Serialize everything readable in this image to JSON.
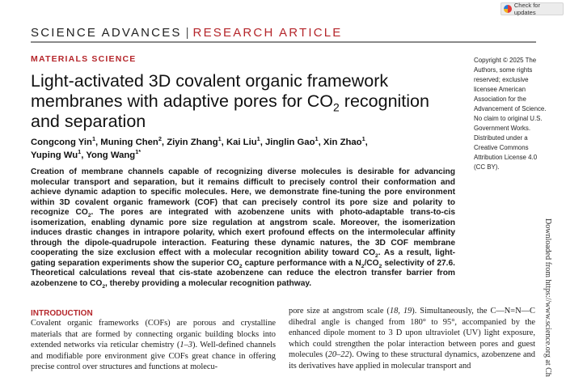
{
  "badge": {
    "label": "Check for updates",
    "icon": "crossmark-icon"
  },
  "journal": {
    "name": "SCIENCE ADVANCES",
    "separator": "|",
    "type": "RESEARCH ARTICLE"
  },
  "section": "MATERIALS SCIENCE",
  "title": [
    {
      "t": "Light-activated 3D covalent organic framework membranes with adaptive pores for CO"
    },
    {
      "t": "2",
      "sub": true
    },
    {
      "t": " recognition and separation"
    }
  ],
  "authors": [
    {
      "name": "Congcong Yin",
      "aff": "1"
    },
    {
      "name": "Muning Chen",
      "aff": "2"
    },
    {
      "name": "Ziyin Zhang",
      "aff": "1"
    },
    {
      "name": "Kai Liu",
      "aff": "1"
    },
    {
      "name": "Jinglin Gao",
      "aff": "1"
    },
    {
      "name": "Xin Zhao",
      "aff": "1"
    },
    {
      "name": "Yuping Wu",
      "aff": "1"
    },
    {
      "name": "Yong Wang",
      "aff": "1*"
    }
  ],
  "abstract": [
    {
      "t": "Creation of membrane channels capable of recognizing diverse molecules is desirable for advancing molecular transport and separation, but it remains difficult to precisely control their conformation and achieve dynamic adaption to specific molecules. Here, we demonstrate fine-tuning the pore environment within 3D covalent organic framework (COF) that can precisely control its pore size and polarity to recognize CO"
    },
    {
      "t": "2",
      "sub": true
    },
    {
      "t": ". The pores are integrated with azobenzene units with photo-adaptable trans-to-cis isomerization, enabling dynamic pore size regulation at angstrom scale. Moreover, the isomerization induces drastic changes in intrapore polarity, which exert profound effects on the intermolecular affinity through the dipole-quadrupole interaction. Featuring these dynamic natures, the 3D COF membrane cooperating the size exclusion effect with a molecular recognition ability toward CO"
    },
    {
      "t": "2",
      "sub": true
    },
    {
      "t": ". As a result, light-gating separation experiments show the superior CO"
    },
    {
      "t": "2",
      "sub": true
    },
    {
      "t": " capture performance with a N"
    },
    {
      "t": "2",
      "sub": true
    },
    {
      "t": "/CO"
    },
    {
      "t": "2",
      "sub": true
    },
    {
      "t": " selectivity of 27.6. Theoretical calculations reveal that cis-state azobenzene can reduce the electron transfer barrier from azobenzene to CO"
    },
    {
      "t": "2",
      "sub": true
    },
    {
      "t": ", thereby providing a molecular recognition pathway."
    }
  ],
  "copyright": "Copyright © 2025 The Authors, some rights reserved; exclusive licensee American Association for the Advancement of Science. No claim to original U.S. Government Works. Distributed under a Creative Commons Attribution License 4.0 (CC BY).",
  "intro": {
    "heading": "INTRODUCTION",
    "left": [
      {
        "t": "Covalent organic frameworks (COFs) are porous and crystalline materials that are formed by connecting organic building blocks into extended networks via reticular chemistry ("
      },
      {
        "t": "1–3",
        "i": true
      },
      {
        "t": "). Well-defined channels and modifiable pore environment give COFs great chance in offering precise control over structures and functions at molecu-"
      }
    ],
    "right": [
      {
        "t": "pore size at angstrom scale ("
      },
      {
        "t": "18, 19",
        "i": true
      },
      {
        "t": "). Simultaneously, the C—N=N—C dihedral angle is changed from 180° to 95°, accompanied by the enhanced dipole moment to 3 D upon ultraviolet (UV) light exposure, which could strengthen the polar interaction between pores and guest molecules ("
      },
      {
        "t": "20–22",
        "i": true
      },
      {
        "t": "). Owing to these structural dynamics, azobenzene and its derivatives have applied in molecular transport and"
      }
    ]
  },
  "download_note": "Downloaded from https://www.science.org at Ch"
}
